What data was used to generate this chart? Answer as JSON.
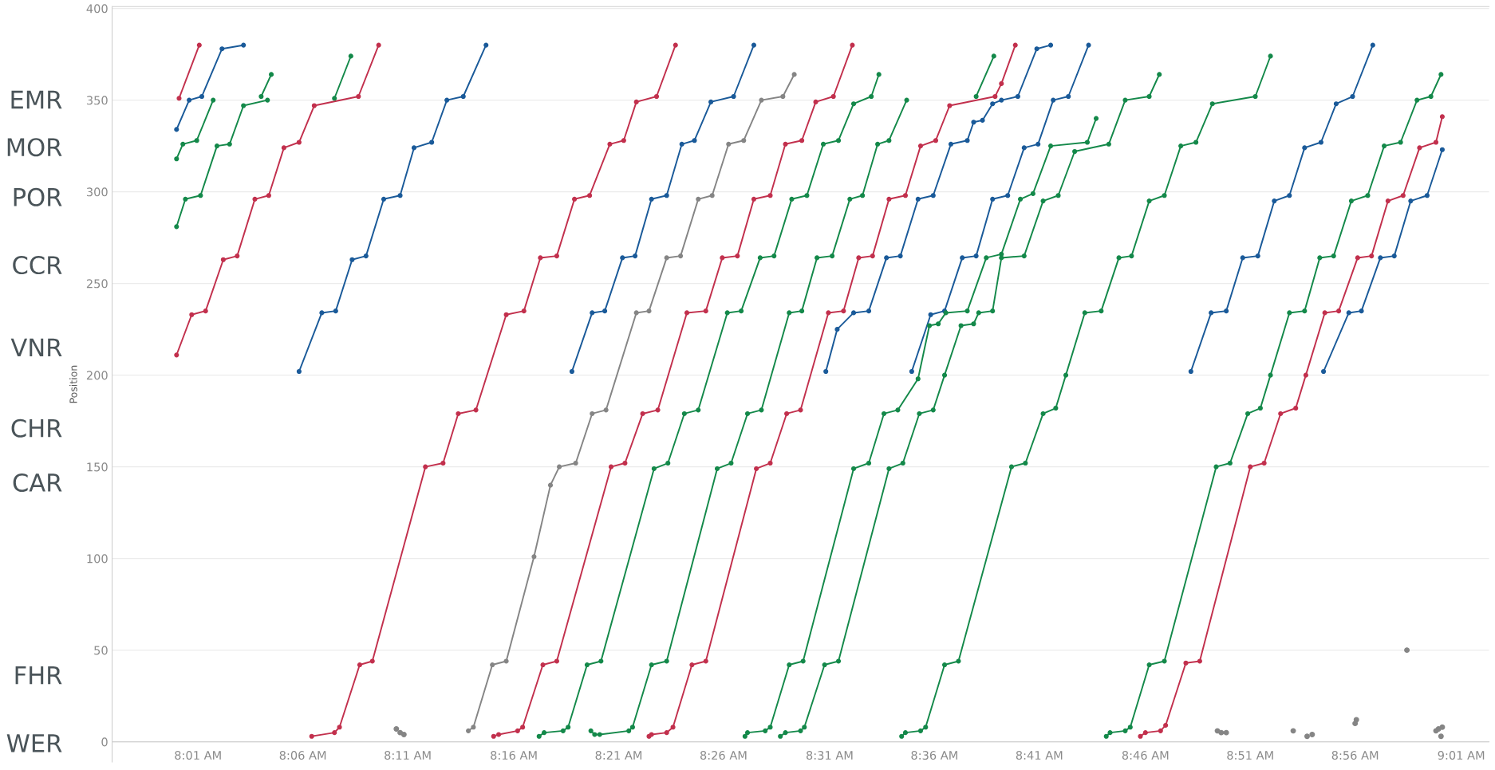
{
  "chart_data": {
    "type": "line",
    "ylabel": "Position",
    "xlim": [
      7.949,
      9.039
    ],
    "ylim": [
      -11,
      401
    ],
    "xticks": [
      {
        "value": 8.017,
        "label": "8:01 AM"
      },
      {
        "value": 8.1,
        "label": "8:06 AM"
      },
      {
        "value": 8.183,
        "label": "8:11 AM"
      },
      {
        "value": 8.267,
        "label": "8:16 AM"
      },
      {
        "value": 8.35,
        "label": "8:21 AM"
      },
      {
        "value": 8.433,
        "label": "8:26 AM"
      },
      {
        "value": 8.517,
        "label": "8:31 AM"
      },
      {
        "value": 8.6,
        "label": "8:36 AM"
      },
      {
        "value": 8.683,
        "label": "8:41 AM"
      },
      {
        "value": 8.767,
        "label": "8:46 AM"
      },
      {
        "value": 8.85,
        "label": "8:51 AM"
      },
      {
        "value": 8.933,
        "label": "8:56 AM"
      },
      {
        "value": 9.017,
        "label": "9:01 AM"
      }
    ],
    "yticks": [
      0,
      50,
      100,
      150,
      200,
      250,
      300,
      350,
      400
    ],
    "grid": "y",
    "marker": "circle",
    "line_style": "solid",
    "annotations": [
      "EMR",
      "MOR",
      "POR",
      "CCR",
      "VNR",
      "CHR",
      "CAR",
      "FHR",
      "WER"
    ],
    "series": [
      {
        "color": "#c2304d",
        "x": [
          8.002,
          8.018
        ],
        "values": [
          351,
          380
        ]
      },
      {
        "color": "#1a5a99",
        "x": [
          8.0,
          8.01,
          8.02,
          8.036,
          8.053
        ],
        "values": [
          334,
          350,
          352,
          378,
          380
        ]
      },
      {
        "color": "#14894a",
        "x": [
          8.0,
          8.007,
          8.019,
          8.032,
          8.042,
          8.053,
          8.072
        ],
        "values": [
          281,
          296,
          298,
          325,
          326,
          347,
          350
        ]
      },
      {
        "color": "#14894a",
        "x": [
          8.067,
          8.075
        ],
        "values": [
          352,
          364
        ]
      },
      {
        "color": "#14894a",
        "x": [
          8.0,
          8.005,
          8.016,
          8.029
        ],
        "values": [
          318,
          326,
          328,
          350
        ]
      },
      {
        "color": "#c2304d",
        "x": [
          8.0,
          8.012,
          8.023,
          8.037,
          8.048,
          8.062,
          8.073,
          8.085,
          8.097,
          8.109,
          8.144,
          8.16
        ],
        "values": [
          211,
          233,
          235,
          263,
          265,
          296,
          298,
          324,
          327,
          347,
          352,
          380
        ]
      },
      {
        "color": "#14894a",
        "x": [
          8.125,
          8.138
        ],
        "values": [
          351,
          374
        ]
      },
      {
        "color": "#1a5a99",
        "x": [
          8.097,
          8.115,
          8.126,
          8.139,
          8.15,
          8.164,
          8.177,
          8.188,
          8.202,
          8.214,
          8.227,
          8.245
        ],
        "values": [
          202,
          234,
          235,
          263,
          265,
          296,
          298,
          324,
          327,
          350,
          352,
          380
        ]
      },
      {
        "color": "#c2304d",
        "x": [
          8.107,
          8.125,
          8.129,
          8.145,
          8.155,
          8.197,
          8.211,
          8.223,
          8.237,
          8.261,
          8.275,
          8.288,
          8.301,
          8.315,
          8.327,
          8.343,
          8.354,
          8.364,
          8.38,
          8.395
        ],
        "values": [
          3,
          5,
          8,
          42,
          44,
          150,
          152,
          179,
          181,
          233,
          235,
          264,
          265,
          296,
          298,
          326,
          328,
          349,
          352,
          380
        ]
      },
      {
        "color": "#858585",
        "x": [
          8.231,
          8.235,
          8.25,
          8.261,
          8.283,
          8.296,
          8.303,
          8.316,
          8.329,
          8.34,
          8.364,
          8.374,
          8.388,
          8.399,
          8.413,
          8.424,
          8.437,
          8.449,
          8.463,
          8.48,
          8.489
        ],
        "values": [
          6,
          8,
          42,
          44,
          101,
          140,
          150,
          152,
          179,
          181,
          234,
          235,
          264,
          265,
          296,
          298,
          326,
          328,
          350,
          352,
          364
        ]
      },
      {
        "color": "#1a5a99",
        "x": [
          8.313,
          8.329,
          8.339,
          8.353,
          8.363,
          8.376,
          8.388,
          8.4,
          8.41,
          8.423,
          8.441,
          8.457
        ],
        "values": [
          202,
          234,
          235,
          264,
          265,
          296,
          298,
          326,
          328,
          349,
          352,
          380
        ]
      },
      {
        "color": "#c2304d",
        "x": [
          8.251,
          8.255,
          8.27,
          8.274,
          8.29,
          8.301,
          8.344,
          8.355,
          8.369,
          8.381,
          8.404,
          8.419,
          8.432,
          8.444,
          8.457,
          8.47,
          8.482,
          8.495,
          8.506,
          8.52,
          8.535
        ],
        "values": [
          3,
          4,
          6,
          8,
          42,
          44,
          150,
          152,
          179,
          181,
          234,
          235,
          264,
          265,
          296,
          298,
          326,
          328,
          349,
          352,
          380
        ]
      },
      {
        "color": "#14894a",
        "x": [
          8.287,
          8.291,
          8.306,
          8.31,
          8.325,
          8.336,
          8.378,
          8.389,
          8.402,
          8.413,
          8.436,
          8.447,
          8.462,
          8.473,
          8.487,
          8.499,
          8.512,
          8.524,
          8.536,
          8.55,
          8.556
        ],
        "values": [
          3,
          5,
          6,
          8,
          42,
          44,
          149,
          152,
          179,
          181,
          234,
          235,
          264,
          265,
          296,
          298,
          326,
          328,
          348,
          352,
          364
        ]
      },
      {
        "color": "#14894a",
        "x": [
          8.328,
          8.331,
          8.335,
          8.358,
          8.361,
          8.376,
          8.388,
          8.428,
          8.439,
          8.452,
          8.463,
          8.485,
          8.495,
          8.507,
          8.519,
          8.533,
          8.543,
          8.555,
          8.564,
          8.578
        ],
        "values": [
          6,
          4,
          4,
          6,
          8,
          42,
          44,
          149,
          152,
          179,
          181,
          234,
          235,
          264,
          265,
          296,
          298,
          326,
          328,
          350
        ]
      },
      {
        "color": "#c2304d",
        "x": [
          8.374,
          8.376,
          8.388,
          8.393,
          8.408,
          8.419,
          8.459,
          8.47,
          8.483,
          8.494,
          8.516,
          8.528,
          8.54,
          8.551,
          8.564,
          8.577,
          8.589,
          8.601,
          8.612,
          8.648,
          8.653,
          8.664
        ],
        "values": [
          3,
          4,
          5,
          8,
          42,
          44,
          149,
          152,
          179,
          181,
          234,
          235,
          264,
          265,
          296,
          298,
          325,
          328,
          347,
          352,
          359,
          380
        ]
      },
      {
        "color": "#14894a",
        "x": [
          8.633,
          8.647
        ],
        "values": [
          352,
          374
        ]
      },
      {
        "color": "#1a5a99",
        "x": [
          8.514,
          8.523,
          8.536,
          8.548,
          8.562,
          8.573,
          8.587,
          8.599,
          8.613,
          8.626,
          8.631,
          8.638,
          8.646,
          8.653,
          8.666,
          8.681,
          8.692
        ],
        "values": [
          202,
          225,
          234,
          235,
          264,
          265,
          296,
          298,
          326,
          328,
          338,
          339,
          348,
          350,
          352,
          378,
          380
        ]
      },
      {
        "color": "#1a5a99",
        "x": [
          8.582,
          8.597,
          8.608,
          8.622,
          8.633,
          8.646,
          8.658,
          8.671,
          8.682,
          8.694,
          8.706,
          8.722
        ],
        "values": [
          202,
          233,
          235,
          264,
          265,
          296,
          298,
          324,
          326,
          350,
          352,
          380
        ]
      },
      {
        "color": "#14894a",
        "x": [
          8.45,
          8.452,
          8.466,
          8.47,
          8.485,
          8.496,
          8.536,
          8.548,
          8.56,
          8.571,
          8.587,
          8.596,
          8.603,
          8.609,
          8.626,
          8.641,
          8.653,
          8.668,
          8.678,
          8.692,
          8.721,
          8.728
        ],
        "values": [
          3,
          5,
          6,
          8,
          42,
          44,
          149,
          152,
          179,
          181,
          198,
          227,
          228,
          234,
          235,
          264,
          266,
          296,
          299,
          325,
          327,
          340
        ]
      },
      {
        "color": "#14894a",
        "x": [
          8.478,
          8.482,
          8.494,
          8.497,
          8.513,
          8.524,
          8.564,
          8.575,
          8.588,
          8.599,
          8.608,
          8.621,
          8.631,
          8.635,
          8.646,
          8.653,
          8.671,
          8.686,
          8.698,
          8.711,
          8.738,
          8.751,
          8.77,
          8.778
        ],
        "values": [
          3,
          5,
          6,
          8,
          42,
          44,
          149,
          152,
          179,
          181,
          200,
          227,
          228,
          234,
          235,
          264,
          265,
          295,
          298,
          322,
          326,
          350,
          352,
          364
        ]
      },
      {
        "color": "#14894a",
        "x": [
          8.574,
          8.577,
          8.589,
          8.593,
          8.608,
          8.619,
          8.661,
          8.672,
          8.686,
          8.696,
          8.704,
          8.719,
          8.732,
          8.746,
          8.756,
          8.77,
          8.782,
          8.795,
          8.807,
          8.82,
          8.854,
          8.866
        ],
        "values": [
          3,
          5,
          6,
          8,
          42,
          44,
          150,
          152,
          179,
          182,
          200,
          234,
          235,
          264,
          265,
          295,
          298,
          325,
          327,
          348,
          352,
          374
        ]
      },
      {
        "color": "#1a5a99",
        "x": [
          8.803,
          8.819,
          8.831,
          8.844,
          8.856,
          8.869,
          8.881,
          8.893,
          8.906,
          8.918,
          8.931,
          8.947
        ],
        "values": [
          202,
          234,
          235,
          264,
          265,
          295,
          298,
          324,
          327,
          348,
          352,
          380
        ]
      },
      {
        "color": "#14894a",
        "x": [
          8.736,
          8.739,
          8.751,
          8.755,
          8.77,
          8.782,
          8.823,
          8.834,
          8.848,
          8.858,
          8.866,
          8.881,
          8.893,
          8.905,
          8.916,
          8.93,
          8.943,
          8.956,
          8.969,
          8.982,
          8.993,
          9.001
        ],
        "values": [
          3,
          5,
          6,
          8,
          42,
          44,
          150,
          152,
          179,
          182,
          200,
          234,
          235,
          264,
          265,
          295,
          298,
          325,
          327,
          350,
          352,
          364
        ]
      },
      {
        "color": "#c2304d",
        "x": [
          8.763,
          8.767,
          8.779,
          8.783,
          8.799,
          8.81,
          8.85,
          8.861,
          8.874,
          8.886,
          8.894,
          8.909,
          8.92,
          8.935,
          8.946,
          8.959,
          8.971,
          8.984,
          8.997,
          9.002
        ],
        "values": [
          3,
          5,
          6,
          9,
          43,
          44,
          150,
          152,
          179,
          182,
          200,
          234,
          235,
          264,
          265,
          295,
          298,
          324,
          327,
          341
        ]
      },
      {
        "color": "#1a5a99",
        "x": [
          8.908,
          8.928,
          8.938,
          8.953,
          8.964,
          8.977,
          8.99,
          9.002
        ],
        "values": [
          202,
          234,
          235,
          264,
          265,
          295,
          298,
          323
        ]
      },
      {
        "type": "scatter",
        "color": "#858585",
        "x": [
          8.174,
          8.177,
          8.18,
          8.824,
          8.827,
          8.831,
          8.884,
          8.895,
          8.899,
          8.933,
          8.934,
          8.974,
          8.997,
          8.999,
          9.002,
          9.001
        ],
        "values": [
          7,
          5,
          4,
          6,
          5,
          5,
          6,
          3,
          4,
          10,
          12,
          50,
          6,
          7,
          8,
          3
        ]
      }
    ]
  }
}
